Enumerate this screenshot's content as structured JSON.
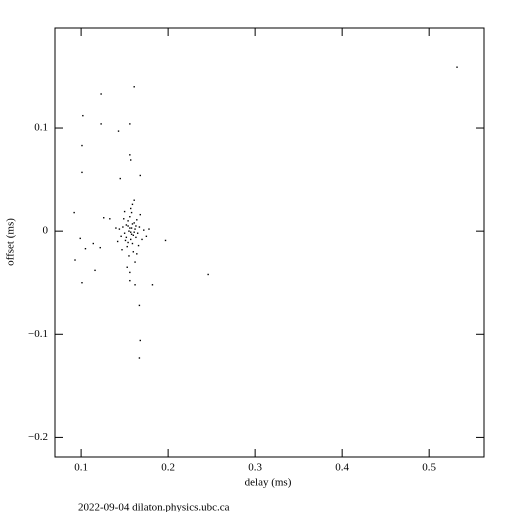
{
  "chart_data": {
    "type": "scatter",
    "xlabel": "delay (ms)",
    "ylabel": "offset (ms)",
    "footer": "2022-09-04 dilaton.physics.ubc.ca",
    "color": "#000000",
    "xlim": [
      0.07,
      0.563
    ],
    "ylim": [
      -0.219,
      0.197
    ],
    "xticks": [
      0.1,
      0.2,
      0.3,
      0.4,
      0.5
    ],
    "yticks": [
      {
        "value": -0.2,
        "label": "−0.2"
      },
      {
        "value": -0.1,
        "label": "−0.1"
      },
      0,
      0.1
    ],
    "x": [
      0.532,
      0.123,
      0.123,
      0.102,
      0.161,
      0.143,
      0.156,
      0.156,
      0.157,
      0.101,
      0.101,
      0.145,
      0.168,
      0.092,
      0.126,
      0.133,
      0.099,
      0.105,
      0.114,
      0.116,
      0.101,
      0.093,
      0.122,
      0.246,
      0.168,
      0.167,
      0.167,
      0.162,
      0.156,
      0.197,
      0.182,
      0.155,
      0.158,
      0.16,
      0.152,
      0.157,
      0.162,
      0.15,
      0.154,
      0.159,
      0.163,
      0.148,
      0.156,
      0.161,
      0.153,
      0.165,
      0.151,
      0.158,
      0.146,
      0.16,
      0.167,
      0.155,
      0.149,
      0.164,
      0.157,
      0.17,
      0.144,
      0.162,
      0.153,
      0.168,
      0.172,
      0.147,
      0.159,
      0.166,
      0.142,
      0.175,
      0.156,
      0.161,
      0.15,
      0.164,
      0.14,
      0.178,
      0.154,
      0.157,
      0.159,
      0.152,
      0.156,
      0.158,
      0.161,
      0.163,
      0.154
    ],
    "y": [
      0.159,
      0.133,
      0.104,
      0.112,
      0.14,
      0.097,
      0.104,
      0.074,
      0.069,
      0.083,
      0.057,
      0.051,
      0.054,
      0.018,
      0.013,
      0.012,
      -0.007,
      -0.017,
      -0.012,
      -0.038,
      -0.05,
      -0.028,
      -0.016,
      -0.042,
      -0.106,
      -0.123,
      -0.072,
      -0.052,
      -0.048,
      -0.009,
      -0.052,
      0.0,
      0.003,
      -0.004,
      0.006,
      -0.008,
      0.002,
      -0.002,
      0.01,
      -0.012,
      -0.006,
      0.004,
      0.014,
      0.008,
      -0.015,
      -0.002,
      -0.009,
      0.018,
      -0.005,
      -0.02,
      0.004,
      -0.024,
      0.012,
      0.011,
      0.022,
      -0.008,
      0.002,
      -0.03,
      -0.035,
      0.016,
      0.001,
      -0.018,
      0.026,
      -0.014,
      -0.01,
      -0.005,
      -0.04,
      0.03,
      0.019,
      -0.022,
      0.003,
      0.002,
      0.005,
      -0.001,
      0.007,
      -0.006,
      0.003,
      -0.003,
      -0.001,
      0.005,
      -0.011
    ]
  }
}
